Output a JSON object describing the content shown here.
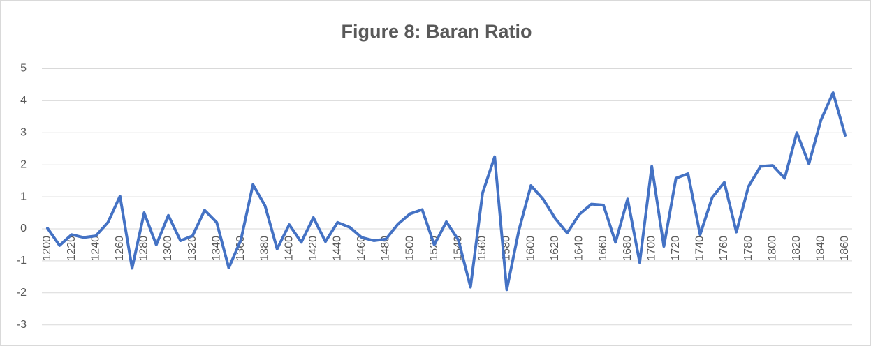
{
  "chart_data": {
    "type": "line",
    "title": "Figure 8:  Baran Ratio",
    "x": [
      1200,
      1210,
      1220,
      1230,
      1240,
      1250,
      1260,
      1270,
      1280,
      1290,
      1300,
      1310,
      1320,
      1330,
      1340,
      1350,
      1360,
      1370,
      1380,
      1390,
      1400,
      1410,
      1420,
      1430,
      1440,
      1450,
      1460,
      1470,
      1480,
      1490,
      1500,
      1510,
      1520,
      1530,
      1540,
      1550,
      1560,
      1570,
      1580,
      1590,
      1600,
      1610,
      1620,
      1630,
      1640,
      1650,
      1660,
      1670,
      1680,
      1690,
      1700,
      1710,
      1720,
      1730,
      1740,
      1750,
      1760,
      1770,
      1780,
      1790,
      1800,
      1810,
      1820,
      1830,
      1840,
      1850,
      1860
    ],
    "series": [
      {
        "name": "Baran Ratio",
        "color": "#4472c4",
        "values": [
          0.02,
          -0.52,
          -0.18,
          -0.27,
          -0.22,
          0.2,
          1.02,
          -1.23,
          0.5,
          -0.5,
          0.42,
          -0.37,
          -0.22,
          0.58,
          0.2,
          -1.22,
          -0.35,
          1.38,
          0.72,
          -0.63,
          0.13,
          -0.42,
          0.35,
          -0.4,
          0.2,
          0.05,
          -0.27,
          -0.37,
          -0.32,
          0.15,
          0.47,
          0.6,
          -0.5,
          0.22,
          -0.35,
          -1.82,
          1.12,
          2.25,
          -1.9,
          -0.05,
          1.35,
          0.93,
          0.33,
          -0.13,
          0.45,
          0.77,
          0.74,
          -0.42,
          0.93,
          -1.05,
          1.95,
          -0.55,
          1.58,
          1.72,
          -0.18,
          0.98,
          1.45,
          -0.1,
          1.32,
          1.95,
          1.98,
          1.58,
          3.0,
          2.03,
          3.4,
          4.25,
          2.92
        ]
      }
    ],
    "xlim": [
      1200,
      1860
    ],
    "xticks": [
      1200,
      1220,
      1240,
      1260,
      1280,
      1300,
      1320,
      1340,
      1360,
      1380,
      1400,
      1420,
      1440,
      1460,
      1480,
      1500,
      1520,
      1540,
      1560,
      1580,
      1600,
      1620,
      1640,
      1660,
      1680,
      1700,
      1720,
      1740,
      1760,
      1780,
      1800,
      1820,
      1840,
      1860
    ],
    "ylim": [
      -3,
      5
    ],
    "yticks": [
      -3,
      -2,
      -1,
      0,
      1,
      2,
      3,
      4,
      5
    ],
    "grid": true
  }
}
